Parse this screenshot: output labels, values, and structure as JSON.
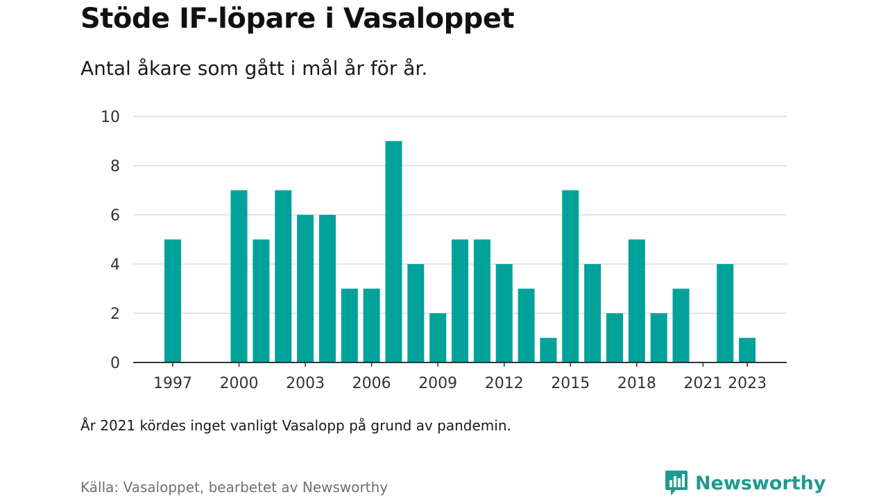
{
  "header": {
    "title": "Stöde IF-löpare i Vasaloppet",
    "subtitle": "Antal åkare som gått i mål år för år."
  },
  "footer": {
    "note": "År 2021 kördes inget vanligt Vasalopp på grund av pandemin.",
    "source": "Källa: Vasaloppet, bearbetet av Newsworthy",
    "brand": "Newsworthy"
  },
  "colors": {
    "bar": "#00a29a",
    "grid": "#dcdcdc",
    "axis": "#333333",
    "brand": "#1f9a90"
  },
  "icons": {
    "brand_logo": "newsworthy-logo-icon"
  },
  "chart_data": {
    "type": "bar",
    "categories": [
      "1997",
      "1998",
      "1999",
      "2000",
      "2001",
      "2002",
      "2003",
      "2004",
      "2005",
      "2006",
      "2007",
      "2008",
      "2009",
      "2010",
      "2011",
      "2012",
      "2013",
      "2014",
      "2015",
      "2016",
      "2017",
      "2018",
      "2019",
      "2020",
      "2021",
      "2022",
      "2023"
    ],
    "values": [
      5,
      0,
      0,
      7,
      5,
      7,
      6,
      6,
      3,
      3,
      9,
      4,
      2,
      5,
      5,
      4,
      3,
      1,
      7,
      4,
      2,
      5,
      2,
      3,
      0,
      4,
      1
    ],
    "x_tick_labels": [
      "1997",
      "2000",
      "2003",
      "2006",
      "2009",
      "2012",
      "2015",
      "2018",
      "2021",
      "2023"
    ],
    "y_ticks": [
      "0",
      "2",
      "4",
      "6",
      "8",
      "10"
    ],
    "ylim": [
      0,
      10
    ],
    "grid": true,
    "legend": "none"
  }
}
